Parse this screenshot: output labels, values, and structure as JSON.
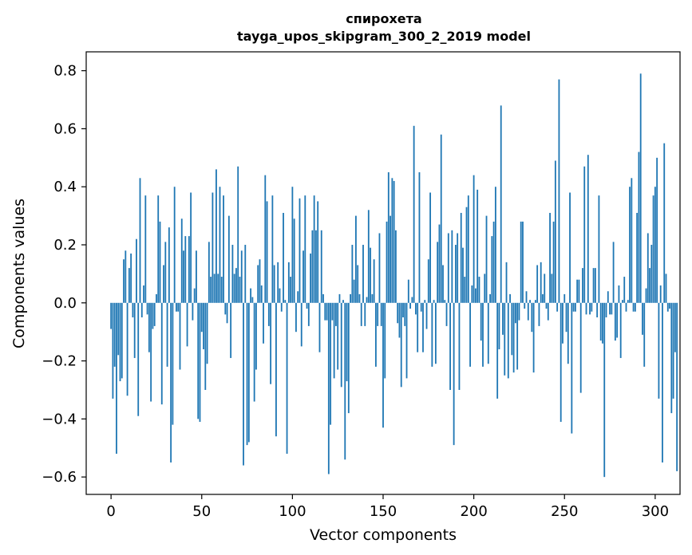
{
  "chart_data": {
    "type": "bar",
    "title": "спирохета",
    "subtitle": "tayga_upos_skipgram_300_2_2019 model",
    "xlabel": "Vector components",
    "ylabel": "Components values",
    "xlim": [
      -13.7,
      313.7
    ],
    "ylim": [
      -0.66,
      0.865
    ],
    "x_ticks": [
      0,
      50,
      100,
      150,
      200,
      250,
      300
    ],
    "y_ticks": [
      -0.6,
      -0.4,
      -0.2,
      0.0,
      0.2,
      0.4,
      0.6,
      0.8
    ],
    "grid": false,
    "bar_color": "#1f77b4",
    "values": [
      -0.09,
      -0.33,
      -0.22,
      -0.52,
      -0.18,
      -0.27,
      -0.26,
      0.15,
      0.18,
      -0.32,
      0.12,
      0.17,
      -0.05,
      -0.19,
      0.22,
      -0.39,
      0.43,
      -0.05,
      0.06,
      0.37,
      -0.04,
      -0.17,
      -0.34,
      -0.09,
      -0.08,
      0.03,
      0.37,
      0.28,
      -0.35,
      0.13,
      0.21,
      -0.22,
      0.26,
      -0.55,
      -0.42,
      0.4,
      -0.03,
      -0.03,
      -0.23,
      0.29,
      0.18,
      0.23,
      -0.15,
      0.23,
      0.38,
      -0.06,
      0.05,
      0.18,
      -0.4,
      -0.41,
      -0.1,
      -0.16,
      -0.3,
      -0.21,
      0.21,
      0.09,
      0.38,
      0.1,
      0.46,
      0.1,
      0.4,
      0.09,
      0.37,
      -0.04,
      -0.07,
      0.3,
      -0.19,
      0.2,
      0.1,
      0.12,
      0.47,
      0.09,
      0.18,
      -0.56,
      0.2,
      -0.49,
      -0.48,
      0.05,
      0.02,
      -0.34,
      -0.23,
      0.13,
      0.15,
      0.06,
      -0.14,
      0.44,
      0.35,
      -0.08,
      -0.28,
      0.37,
      0.13,
      -0.46,
      0.14,
      0.05,
      -0.03,
      0.31,
      0.01,
      -0.52,
      0.14,
      0.09,
      0.4,
      0.29,
      -0.1,
      0.04,
      0.36,
      -0.15,
      0.18,
      0.37,
      -0.02,
      -0.08,
      0.17,
      0.25,
      0.37,
      0.25,
      0.35,
      -0.17,
      0.25,
      0.03,
      -0.06,
      -0.06,
      -0.59,
      -0.42,
      -0.06,
      -0.26,
      -0.08,
      -0.23,
      0.03,
      -0.29,
      0.01,
      -0.54,
      -0.27,
      -0.38,
      0.03,
      0.2,
      0.08,
      0.3,
      0.13,
      0.03,
      -0.08,
      0.2,
      -0.08,
      0.02,
      0.32,
      0.19,
      0.03,
      0.15,
      -0.22,
      -0.08,
      0.24,
      -0.08,
      -0.43,
      -0.26,
      0.28,
      0.45,
      0.3,
      0.43,
      0.42,
      0.25,
      -0.07,
      -0.12,
      -0.29,
      -0.05,
      -0.08,
      -0.26,
      0.08,
      -0.02,
      0.02,
      0.61,
      -0.04,
      -0.17,
      0.45,
      -0.03,
      -0.17,
      0.01,
      -0.09,
      0.15,
      0.38,
      -0.22,
      0.01,
      -0.21,
      0.21,
      0.27,
      0.58,
      0.13,
      0.01,
      -0.08,
      0.24,
      -0.3,
      0.25,
      -0.49,
      0.2,
      0.24,
      -0.3,
      0.31,
      0.19,
      0.09,
      0.33,
      0.37,
      -0.22,
      0.06,
      0.44,
      0.05,
      0.39,
      0.09,
      -0.13,
      -0.22,
      0.1,
      0.3,
      -0.21,
      0.03,
      0.23,
      0.28,
      0.4,
      -0.33,
      -0.16,
      0.68,
      -0.11,
      -0.25,
      0.14,
      -0.26,
      0.03,
      -0.18,
      -0.24,
      -0.07,
      -0.23,
      -0.06,
      0.28,
      0.28,
      -0.02,
      0.04,
      -0.06,
      0.01,
      -0.1,
      -0.24,
      0.01,
      0.13,
      -0.08,
      0.14,
      0.03,
      0.1,
      -0.02,
      -0.06,
      0.31,
      0.1,
      0.28,
      0.49,
      -0.03,
      0.77,
      -0.41,
      -0.14,
      0.03,
      -0.1,
      -0.21,
      0.38,
      -0.45,
      -0.03,
      -0.03,
      0.08,
      0.08,
      -0.31,
      0.12,
      0.47,
      -0.04,
      0.51,
      -0.04,
      -0.03,
      0.12,
      0.12,
      -0.05,
      0.37,
      -0.13,
      -0.14,
      -0.6,
      -0.05,
      0.04,
      -0.04,
      -0.04,
      0.21,
      -0.13,
      -0.12,
      0.06,
      -0.19,
      0.01,
      0.09,
      -0.03,
      0.01,
      0.4,
      0.43,
      -0.03,
      -0.03,
      0.31,
      0.52,
      0.79,
      -0.11,
      -0.22,
      0.05,
      0.24,
      0.12,
      0.2,
      0.37,
      0.4,
      0.5,
      -0.33,
      0.06,
      -0.55,
      0.55,
      0.1,
      -0.03,
      -0.02,
      -0.38,
      -0.33,
      -0.17,
      -0.58
    ]
  }
}
